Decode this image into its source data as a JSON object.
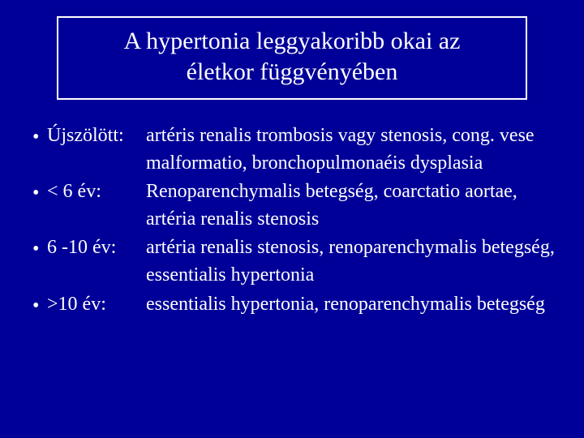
{
  "colors": {
    "background": "#000099",
    "title_bg": "#000099",
    "title_text": "#ffffff",
    "title_border": "#ffffff",
    "body_text": "#ffffff",
    "bullet_color": "#ffffff"
  },
  "title": {
    "line1": "A hypertonia leggyakoribb okai az",
    "line2": "életkor függvényében"
  },
  "bullets": [
    {
      "label": "Újszölött:",
      "desc": "artéris renalis trombosis vagy stenosis, cong. vese malformatio, bronchopulmonaéis dysplasia"
    },
    {
      "label": "< 6 év:",
      "desc": "Renoparenchymalis betegség, coarctatio aortae, artéria renalis stenosis"
    },
    {
      "label": "6 -10 év:",
      "desc": "artéria renalis stenosis, renoparenchymalis betegség, essentialis hypertonia"
    },
    {
      "label": ">10 év:",
      "desc": "essentialis hypertonia, renoparenchymalis betegség"
    }
  ]
}
